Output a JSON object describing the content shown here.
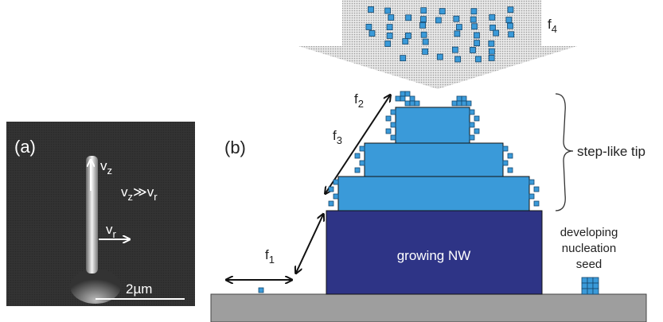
{
  "panel_a": {
    "label": "(a)",
    "vz": {
      "main": "v",
      "sub": "z"
    },
    "relation": {
      "left": {
        "main": "v",
        "sub": "z"
      },
      "op": "≫",
      "right": {
        "main": "v",
        "sub": "r"
      }
    },
    "vr": {
      "main": "v",
      "sub": "r"
    },
    "scale_bar": "2µm"
  },
  "panel_b": {
    "label": "(b)",
    "fluxes": [
      {
        "main": "f",
        "sub": "1"
      },
      {
        "main": "f",
        "sub": "2"
      },
      {
        "main": "f",
        "sub": "3"
      },
      {
        "main": "f",
        "sub": "4"
      }
    ],
    "tip_label": "step-like tip",
    "nanowire_label": "growing NW",
    "seed_label": [
      "developing",
      "nucleation",
      "seed"
    ]
  }
}
